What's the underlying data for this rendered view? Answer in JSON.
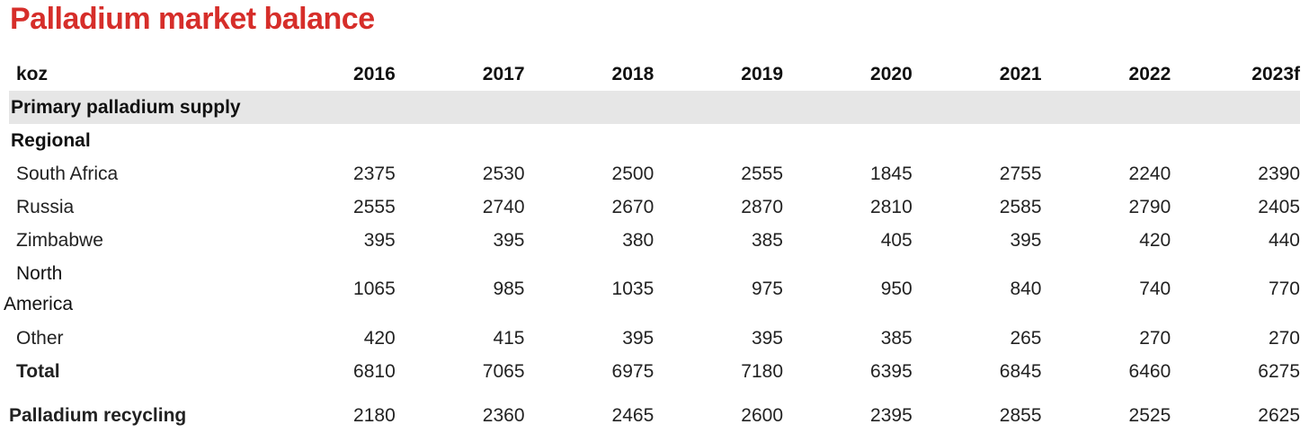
{
  "title": "Palladium market balance",
  "table": {
    "unit": "koz",
    "years": [
      "2016",
      "2017",
      "2018",
      "2019",
      "2020",
      "2021",
      "2022",
      "2023f"
    ],
    "section_header": "Primary palladium supply",
    "group_header": "Regional",
    "regional": [
      {
        "label": "South Africa",
        "values": [
          "2375",
          "2530",
          "2500",
          "2555",
          "1845",
          "2755",
          "2240",
          "2390"
        ]
      },
      {
        "label": "Russia",
        "values": [
          "2555",
          "2740",
          "2670",
          "2870",
          "2810",
          "2585",
          "2790",
          "2405"
        ]
      },
      {
        "label": "Zimbabwe",
        "values": [
          "395",
          "395",
          "380",
          "385",
          "405",
          "395",
          "420",
          "440"
        ]
      },
      {
        "label_line1": "North",
        "label_line2": "America",
        "values": [
          "1065",
          "985",
          "1035",
          "975",
          "950",
          "840",
          "740",
          "770"
        ]
      },
      {
        "label": "Other",
        "values": [
          "420",
          "415",
          "395",
          "395",
          "385",
          "265",
          "270",
          "270"
        ]
      }
    ],
    "total": {
      "label": "Total",
      "values": [
        "6810",
        "7065",
        "6975",
        "7180",
        "6395",
        "6845",
        "6460",
        "6275"
      ]
    },
    "recycling": {
      "label": "Palladium recycling",
      "values": [
        "2180",
        "2360",
        "2465",
        "2600",
        "2395",
        "2855",
        "2525",
        "2625"
      ]
    }
  }
}
